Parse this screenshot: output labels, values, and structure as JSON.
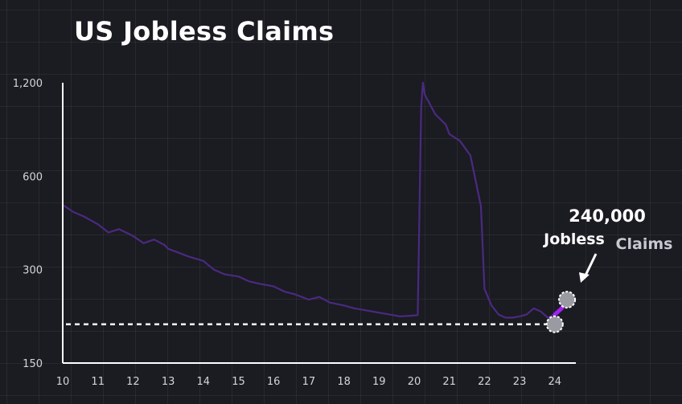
{
  "title": "US Jobless Claims",
  "colors": {
    "background": "#1b1b22",
    "series": "#4a2a80",
    "highlight": "#a020f0",
    "axis": "#ffffff",
    "reference_line": "#ffffff"
  },
  "annotation": {
    "value": "240,000",
    "label_line1": "Jobless",
    "label_line2": "Claims"
  },
  "chart_data": {
    "type": "line",
    "title": "US Jobless Claims",
    "xlabel": "",
    "ylabel": "",
    "y_scale": "log",
    "ylim": [
      150,
      1200
    ],
    "xlim": [
      10,
      24.6
    ],
    "yticks": [
      {
        "value": 150,
        "label": "150"
      },
      {
        "value": 300,
        "label": "300"
      },
      {
        "value": 600,
        "label": "600"
      },
      {
        "value": 1200,
        "label": "1,200"
      }
    ],
    "xticks": [
      10,
      11,
      12,
      13,
      14,
      15,
      16,
      17,
      18,
      19,
      20,
      21,
      22,
      23,
      24
    ],
    "reference_line": {
      "value": 200,
      "style": "dashed"
    },
    "markers": [
      {
        "x": 24.0,
        "y": 200
      },
      {
        "x": 24.35,
        "y": 240
      }
    ],
    "series": [
      {
        "x": [
          10.0,
          10.3,
          10.6,
          11.0,
          11.3,
          11.6,
          12.0,
          12.3,
          12.6,
          12.9,
          13.0,
          13.3,
          13.6,
          14.0,
          14.3,
          14.6,
          15.0,
          15.3,
          15.6,
          16.0,
          16.3,
          16.6,
          17.0,
          17.3,
          17.6,
          18.0,
          18.3,
          18.6,
          19.0,
          19.3,
          19.6,
          19.9,
          20.1,
          20.2,
          20.25,
          20.3,
          20.6,
          20.9,
          21.0,
          21.3,
          21.6,
          21.9,
          22.0,
          22.2,
          22.4,
          22.6,
          22.8,
          23.0,
          23.2,
          23.4,
          23.6,
          23.8,
          24.0,
          24.2,
          24.35
        ],
        "y": [
          485,
          460,
          445,
          420,
          395,
          405,
          385,
          365,
          375,
          360,
          350,
          340,
          330,
          320,
          300,
          290,
          285,
          275,
          270,
          265,
          255,
          250,
          240,
          245,
          235,
          230,
          225,
          222,
          218,
          215,
          212,
          213,
          214,
          1000,
          1200,
          1100,
          950,
          880,
          820,
          780,
          700,
          480,
          260,
          230,
          215,
          210,
          210,
          212,
          215,
          225,
          220,
          210,
          215,
          225,
          240
        ]
      }
    ]
  }
}
